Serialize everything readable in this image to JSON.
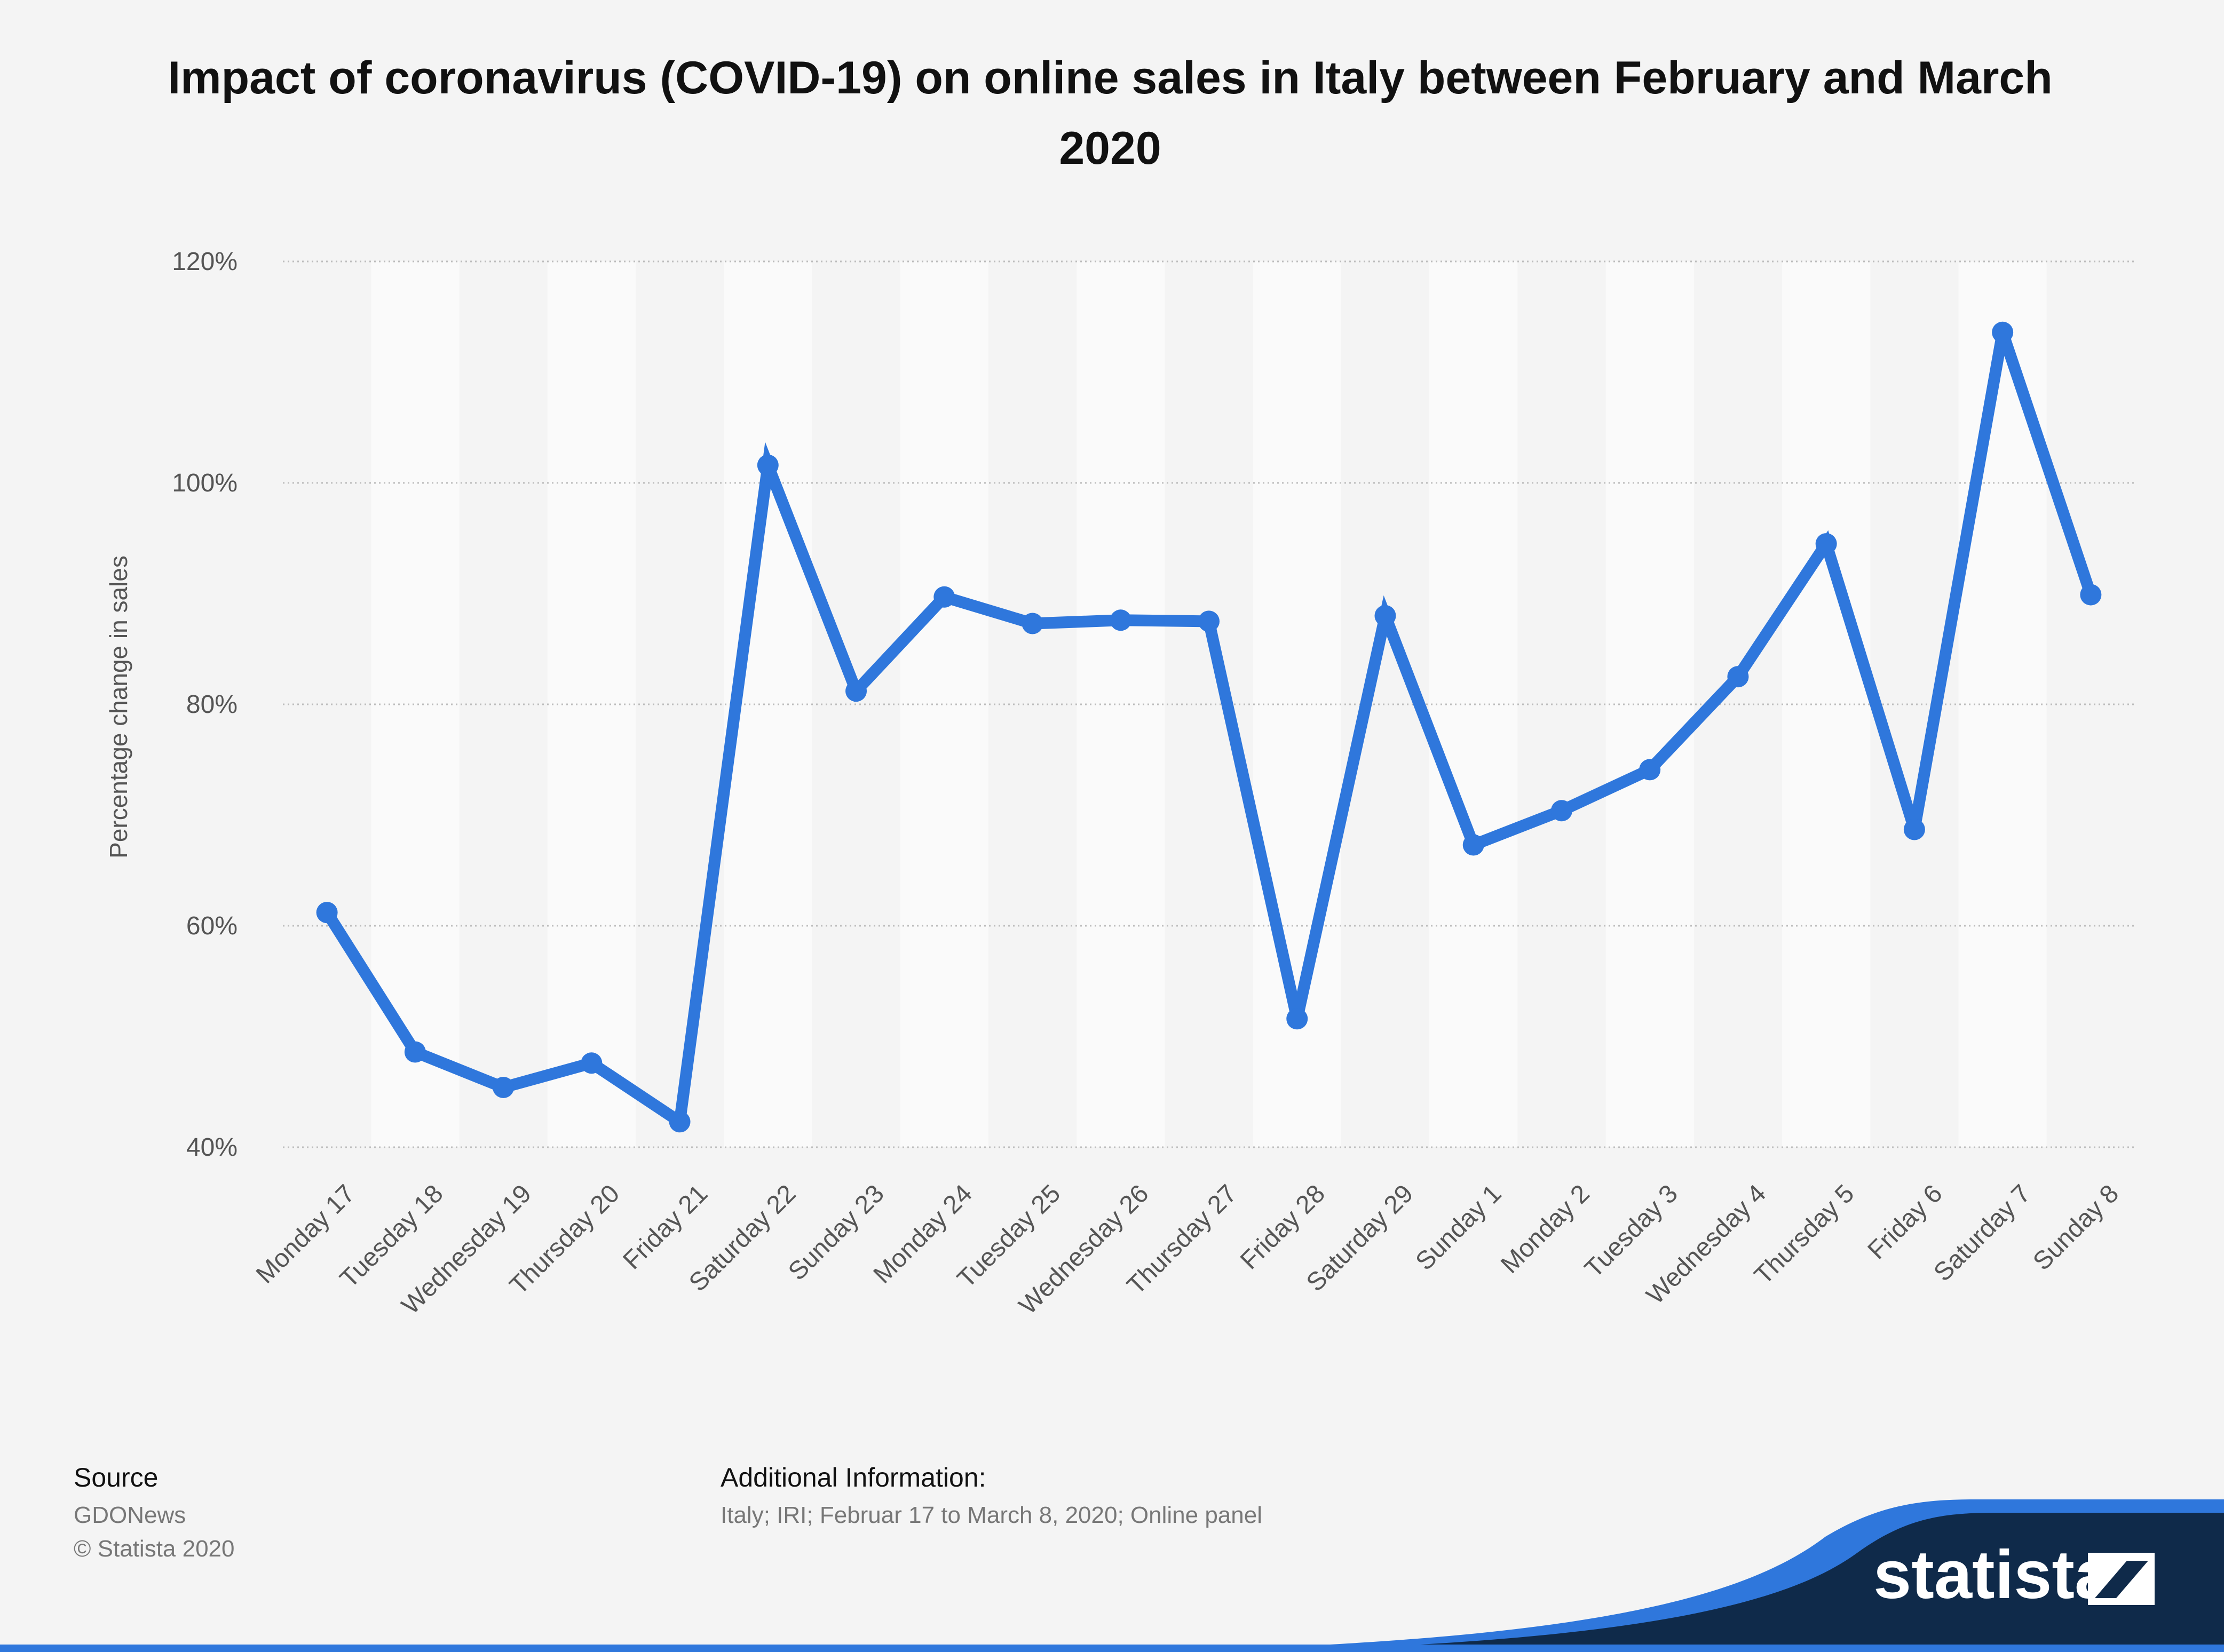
{
  "title": "Impact of coronavirus (COVID-19) on online sales in Italy between February and March 2020",
  "chart_data": {
    "type": "line",
    "title": "Impact of coronavirus (COVID-19) on online sales in Italy between February and March 2020",
    "xlabel": "",
    "ylabel": "Percentage change in sales",
    "categories": [
      "Monday 17",
      "Tuesday 18",
      "Wednesday 19",
      "Thursday 20",
      "Friday 21",
      "Saturday 22",
      "Sunday 23",
      "Monday 24",
      "Tuesday 25",
      "Wednesday 26",
      "Thursday 27",
      "Friday 28",
      "Saturday 29",
      "Sunday 1",
      "Monday 2",
      "Tuesday 3",
      "Wednesday 4",
      "Thursday 5",
      "Friday 6",
      "Saturday 7",
      "Sunday 8"
    ],
    "series": [
      {
        "values": [
          61.2,
          48.6,
          45.4,
          47.6,
          42.3,
          101.6,
          81.2,
          89.7,
          87.3,
          87.6,
          87.5,
          51.6,
          88.0,
          67.3,
          70.4,
          74.1,
          82.5,
          94.5,
          68.7,
          113.6,
          89.9
        ],
        "color": "#2f77dc"
      }
    ],
    "ylim": [
      40,
      120
    ],
    "yticks": [
      40,
      60,
      80,
      100,
      120
    ],
    "ytick_labels": [
      "40%",
      "60%",
      "80%",
      "100%",
      "120%"
    ],
    "grid": "horizontal dotted",
    "legend": "none",
    "colors": {
      "line": "#2f77dc",
      "band": "#fafafa",
      "grid": "#bdbdbd"
    }
  },
  "footer": {
    "source_heading": "Source",
    "source_name": "GDONews",
    "copyright": "© Statista 2020",
    "info_heading": "Additional Information:",
    "info_text": "Italy; IRI; Februar 17 to March 8, 2020; Online panel"
  },
  "brand": {
    "logo_text": "statista",
    "colors": {
      "navy": "#0f2a4a",
      "blue": "#2f77dc"
    }
  }
}
